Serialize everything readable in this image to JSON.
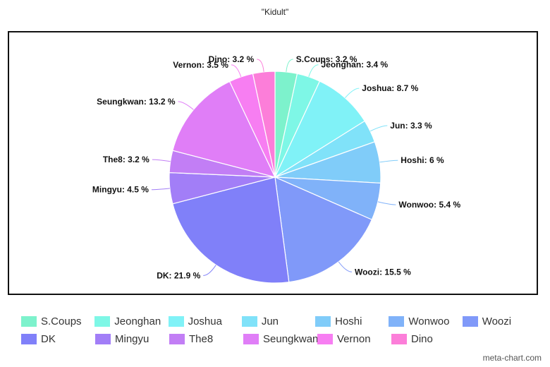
{
  "chart_data": {
    "type": "pie",
    "title": "\"Kidult\"",
    "unit": "%",
    "slices": [
      {
        "name": "S.Coups",
        "value": 3.2,
        "color": "#7df2cc"
      },
      {
        "name": "Jeonghan",
        "value": 3.4,
        "color": "#7ef7e6"
      },
      {
        "name": "Joshua",
        "value": 8.7,
        "color": "#80f2f7"
      },
      {
        "name": "Jun",
        "value": 3.3,
        "color": "#80e2f9"
      },
      {
        "name": "Hoshi",
        "value": 6,
        "color": "#80ccf9"
      },
      {
        "name": "Wonwoo",
        "value": 5.4,
        "color": "#80b2f9"
      },
      {
        "name": "Woozi",
        "value": 15.5,
        "color": "#8099f9"
      },
      {
        "name": "DK",
        "value": 21.9,
        "color": "#8080f9"
      },
      {
        "name": "Mingyu",
        "value": 4.5,
        "color": "#a27ef7"
      },
      {
        "name": "The8",
        "value": 3.2,
        "color": "#c27ef5"
      },
      {
        "name": "Seungkwan",
        "value": 13.2,
        "color": "#e07ef7"
      },
      {
        "name": "Vernon",
        "value": 3.5,
        "color": "#f77ef2"
      },
      {
        "name": "Dino",
        "value": 3.2,
        "color": "#fc7ed9"
      }
    ],
    "legend_placement": "bottom"
  },
  "watermark": "meta-chart.com"
}
